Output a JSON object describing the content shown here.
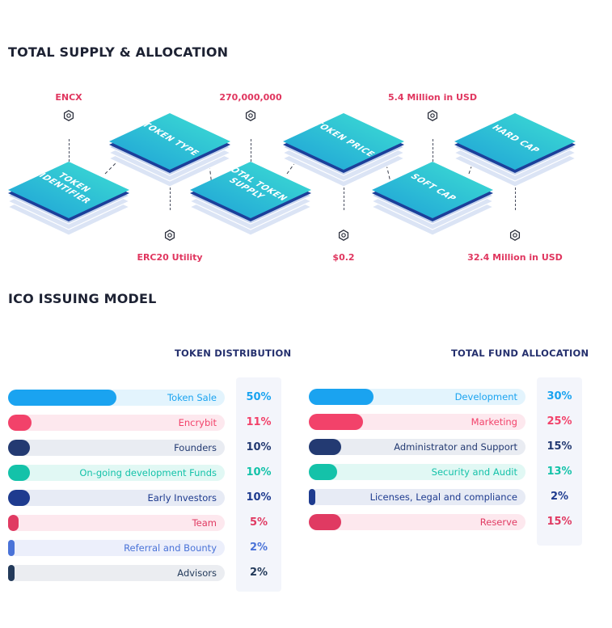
{
  "supply_section": {
    "title": "TOTAL SUPPLY & ALLOCATION",
    "blocks": [
      {
        "id": "token-identifier",
        "label": "TOKEN IDENTIFIER",
        "value": "ENCX",
        "callout_position": "top"
      },
      {
        "id": "token-type",
        "label": "TOKEN TYPE",
        "value": "ERC20 Utility",
        "callout_position": "bottom"
      },
      {
        "id": "total-token-supply",
        "label": "TOTAL TOKEN SUPPLY",
        "value": "270,000,000",
        "callout_position": "top"
      },
      {
        "id": "token-price",
        "label": "TOKEN PRICE",
        "value": "$0.2",
        "callout_position": "bottom"
      },
      {
        "id": "soft-cap",
        "label": "SOFT CAP",
        "value": "5.4 Million in USD",
        "callout_position": "top"
      },
      {
        "id": "hard-cap",
        "label": "HARD CAP",
        "value": "32.4 Million in USD",
        "callout_position": "bottom"
      }
    ]
  },
  "ico_section": {
    "title": "ICO ISSUING MODEL"
  },
  "token_distribution": {
    "heading": "TOKEN DISTRIBUTION",
    "rows": [
      {
        "label": "Token Sale",
        "percent": 50,
        "percent_text": "50%",
        "color": "#1aa3f0",
        "track": "#e3f4fd"
      },
      {
        "label": "Encrybit",
        "percent": 11,
        "percent_text": "11%",
        "color": "#f2426a",
        "track": "#fde8ee"
      },
      {
        "label": "Founders",
        "percent": 10,
        "percent_text": "10%",
        "color": "#233a72",
        "track": "#e9ecf2"
      },
      {
        "label": "On-going development Funds",
        "percent": 10,
        "percent_text": "10%",
        "color": "#14c2a9",
        "track": "#e1f8f4"
      },
      {
        "label": "Early Investors",
        "percent": 10,
        "percent_text": "10%",
        "color": "#1e3b8f",
        "track": "#e7ebf5"
      },
      {
        "label": "Team",
        "percent": 5,
        "percent_text": "5%",
        "color": "#e03a62",
        "track": "#fde8ee"
      },
      {
        "label": "Referral and Bounty",
        "percent": 2,
        "percent_text": "2%",
        "color": "#4a73d8",
        "track": "#eceffb"
      },
      {
        "label": "Advisors",
        "percent": 2,
        "percent_text": "2%",
        "color": "#233a5a",
        "track": "#ebedf1"
      }
    ]
  },
  "fund_allocation": {
    "heading": "TOTAL FUND ALLOCATION",
    "rows": [
      {
        "label": "Development",
        "percent": 30,
        "percent_text": "30%",
        "color": "#1aa3f0",
        "track": "#e3f4fd"
      },
      {
        "label": "Marketing",
        "percent": 25,
        "percent_text": "25%",
        "color": "#f2426a",
        "track": "#fde8ee"
      },
      {
        "label": "Administrator and Support",
        "percent": 15,
        "percent_text": "15%",
        "color": "#233a72",
        "track": "#e9ecf2"
      },
      {
        "label": "Security and Audit",
        "percent": 13,
        "percent_text": "13%",
        "color": "#14c2a9",
        "track": "#e1f8f4"
      },
      {
        "label": "Licenses, Legal and compliance",
        "percent": 2,
        "percent_text": "2%",
        "color": "#1e3b8f",
        "track": "#e7ebf5"
      },
      {
        "label": "Reserve",
        "percent": 15,
        "percent_text": "15%",
        "color": "#e03a62",
        "track": "#fde8ee"
      }
    ]
  },
  "icons": {
    "node": "hexagon-node-icon"
  }
}
